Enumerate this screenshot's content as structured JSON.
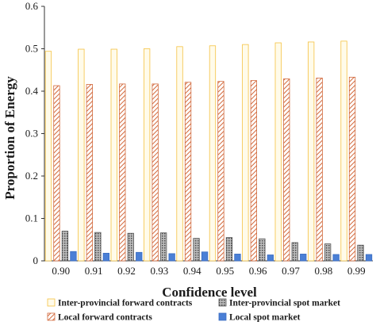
{
  "chart_data": {
    "type": "bar",
    "title": "",
    "xlabel": "Confidence level",
    "ylabel": "Proportion of  Energy",
    "ylim": [
      0,
      0.6
    ],
    "yticks": [
      "0",
      "0.1",
      "0.2",
      "0.3",
      "0.4",
      "0.5",
      "0.6"
    ],
    "categories": [
      "0.90",
      "0.91",
      "0.92",
      "0.93",
      "0.94",
      "0.95",
      "0.96",
      "0.97",
      "0.98",
      "0.99"
    ],
    "grid": false,
    "legend_position": "bottom",
    "series": [
      {
        "name": "Inter-provincial forward contracts",
        "color": "#f5c242",
        "fill": "#fffbea",
        "pattern": "none",
        "values": [
          0.494,
          0.499,
          0.499,
          0.5,
          0.505,
          0.507,
          0.51,
          0.514,
          0.516,
          0.518
        ]
      },
      {
        "name": "Inter-provincial spot market",
        "color": "#555555",
        "fill": "#c8c8c8",
        "pattern": "dots",
        "values": [
          0.07,
          0.067,
          0.065,
          0.066,
          0.053,
          0.055,
          0.052,
          0.043,
          0.04,
          0.037
        ]
      },
      {
        "name": "Local forward contracts",
        "color": "#d2693c",
        "fill": "#ffffff",
        "pattern": "diagonal",
        "values": [
          0.413,
          0.416,
          0.417,
          0.417,
          0.421,
          0.423,
          0.425,
          0.429,
          0.431,
          0.433
        ]
      },
      {
        "name": "Local spot market",
        "color": "#3a6cc0",
        "fill": "#4a7fd6",
        "pattern": "none",
        "values": [
          0.022,
          0.018,
          0.02,
          0.017,
          0.021,
          0.016,
          0.014,
          0.016,
          0.015,
          0.015
        ]
      }
    ],
    "bar_order": [
      0,
      2,
      1,
      3
    ]
  }
}
